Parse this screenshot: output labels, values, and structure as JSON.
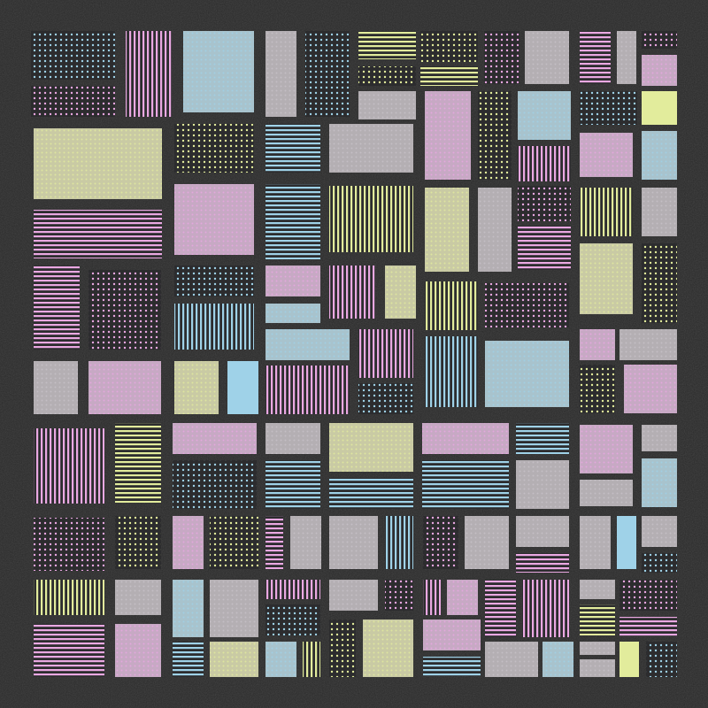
{
  "background": "#2a2a2a",
  "palette": {
    "p": {
      "name": "pink",
      "line": "#eaa8e2",
      "fill": "#c7a9c4"
    },
    "b": {
      "name": "blue",
      "line": "#9fd2e8",
      "fill": "#a8c3cd"
    },
    "y": {
      "name": "yellow",
      "line": "#e2ec9c",
      "fill": "#c9caa4"
    },
    "g": {
      "name": "gray",
      "line": "#c8c2c8",
      "fill": "#b4afb3"
    }
  },
  "pattern_types": [
    "vertical-lines",
    "horizontal-lines",
    "dots-on-dark",
    "dotted-fill",
    "solid"
  ]
}
